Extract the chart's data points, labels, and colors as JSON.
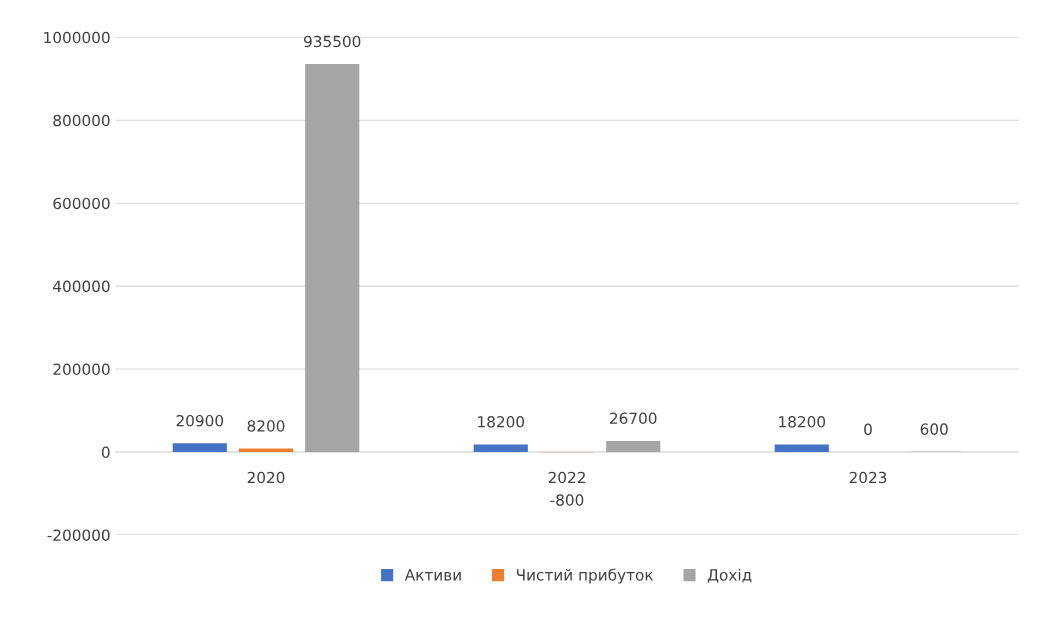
{
  "chart_data": {
    "type": "bar",
    "categories": [
      "2020",
      "2022",
      "2023"
    ],
    "series": [
      {
        "name": "Активи",
        "color": "#4472c4",
        "values": [
          20900,
          18200,
          18200
        ]
      },
      {
        "name": "Чистий прибуток",
        "color": "#ed7d31",
        "values": [
          8200,
          -800,
          0
        ]
      },
      {
        "name": "Дохід",
        "color": "#a5a5a5",
        "values": [
          935500,
          26700,
          600
        ]
      }
    ],
    "ylim": [
      -200000,
      1000000
    ],
    "yticks": [
      -200000,
      0,
      200000,
      400000,
      600000,
      800000,
      1000000
    ],
    "grid": "y",
    "legend": "bottom",
    "data_labels": true
  }
}
